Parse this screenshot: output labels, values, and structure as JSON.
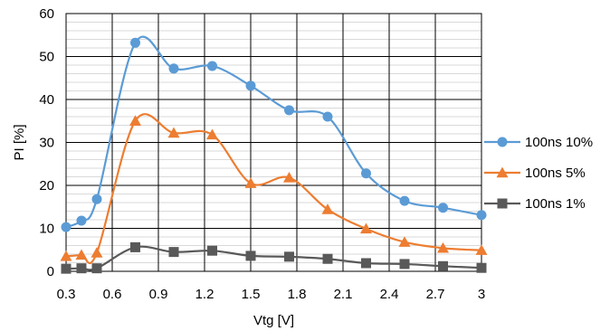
{
  "chart_data": {
    "type": "line",
    "xlabel": "Vtg [V]",
    "ylabel": "PI [%]",
    "xlim": [
      0.3,
      3
    ],
    "ylim": [
      0,
      60
    ],
    "x_ticks": [
      "0.3",
      "0.6",
      "0.9",
      "1.2",
      "1.5",
      "1.8",
      "2.1",
      "2.4",
      "2.7",
      "3"
    ],
    "y_ticks": [
      "0",
      "10",
      "20",
      "30",
      "40",
      "50",
      "60"
    ],
    "grid": true,
    "legend_position": "right",
    "smooth": true,
    "series": [
      {
        "name": "100ns 10%",
        "color": "#5b9bd5",
        "marker": "circle",
        "points": [
          [
            0.3,
            10.3
          ],
          [
            0.4,
            11.8
          ],
          [
            0.5,
            16.8
          ],
          [
            0.75,
            53.2
          ],
          [
            1.0,
            47.2
          ],
          [
            1.25,
            47.8
          ],
          [
            1.5,
            43.2
          ],
          [
            1.75,
            37.5
          ],
          [
            2.0,
            36.0
          ],
          [
            2.25,
            22.8
          ],
          [
            2.5,
            16.4
          ],
          [
            2.75,
            14.8
          ],
          [
            3.0,
            13.1
          ]
        ]
      },
      {
        "name": "100ns 5%",
        "color": "#ed7d31",
        "marker": "triangle",
        "points": [
          [
            0.3,
            3.5
          ],
          [
            0.4,
            3.8
          ],
          [
            0.5,
            4.3
          ],
          [
            0.75,
            35.0
          ],
          [
            1.0,
            32.2
          ],
          [
            1.25,
            31.8
          ],
          [
            1.5,
            20.5
          ],
          [
            1.75,
            21.8
          ],
          [
            2.0,
            14.4
          ],
          [
            2.25,
            9.9
          ],
          [
            2.5,
            6.8
          ],
          [
            2.75,
            5.4
          ],
          [
            3.0,
            4.9
          ]
        ]
      },
      {
        "name": "100ns 1%",
        "color": "#595959",
        "marker": "square",
        "points": [
          [
            0.3,
            0.6
          ],
          [
            0.4,
            0.7
          ],
          [
            0.5,
            0.7
          ],
          [
            0.75,
            5.6
          ],
          [
            1.0,
            4.5
          ],
          [
            1.25,
            4.8
          ],
          [
            1.5,
            3.6
          ],
          [
            1.75,
            3.4
          ],
          [
            2.0,
            2.9
          ],
          [
            2.25,
            1.9
          ],
          [
            2.5,
            1.7
          ],
          [
            2.75,
            1.2
          ],
          [
            3.0,
            0.8
          ]
        ]
      }
    ]
  }
}
